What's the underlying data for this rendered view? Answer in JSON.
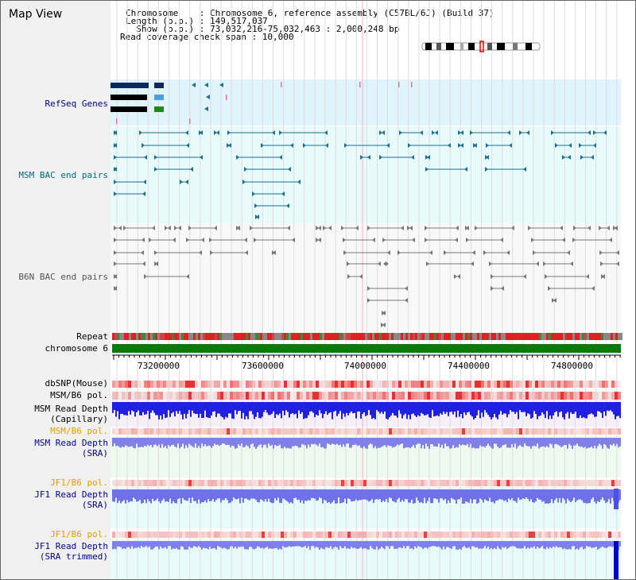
{
  "title": "Map View",
  "header": {
    "line1": "Chromosome    : Chromosome 6, reference assembly (C57BL/6J) (Build 37)",
    "line2": "Length (b.p.) : 149,517,037",
    "line3": "  Show (b.p.) : 73,032,216-75,032,463 : 2,000,248 bp",
    "line4": "Read coverage check span : 10,000"
  },
  "tracks": {
    "refseq": "RefSeq Genes",
    "msm_bac": "MSM BAC end pairs",
    "b6n_bac": "B6N BAC end pairs",
    "repeat": "Repeat",
    "chromosome": "chromosome 6",
    "dbsnp": "dbSNP(Mouse)",
    "msm_b6_pol": "MSM/B6 pol.",
    "msm_read_cap_1": "MSM Read Depth",
    "msm_read_cap_2": "(Capillary)",
    "msm_b6_pol2": "MSM/B6 pol.",
    "msm_read_sra_1": "MSM Read Depth",
    "msm_read_sra_2": "(SRA)",
    "jf1_b6_pol": "JF1/B6 pol.",
    "jf1_read_sra_1": "JF1 Read Depth",
    "jf1_read_sra_2": "(SRA)",
    "jf1_b6_pol2": "JF1/B6 pol.",
    "jf1_read_trim_1": "JF1 Read Depth",
    "jf1_read_trim_2": "(SRA trimmed)"
  },
  "axis_ticks": [
    "73200000",
    "73600000",
    "74000000",
    "74400000",
    "74800000"
  ],
  "colors": {
    "refseq_bg": "#e0f4fc",
    "bac_bg": "#e8fafa",
    "b6n_bg": "#f8f8f8",
    "chrom_green": "#0a7a0a",
    "teal": "#1f6f8f",
    "gray": "#888888",
    "label_navy": "#00008b",
    "label_teal": "#006b80",
    "label_orange": "#e0a000"
  }
}
